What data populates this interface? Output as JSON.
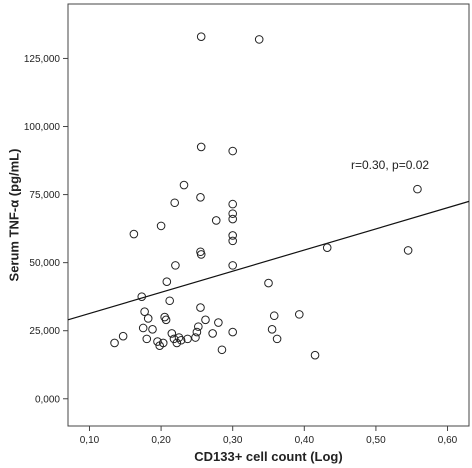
{
  "chart_data": {
    "type": "scatter",
    "xlabel": "CD133+ cell count (Log)",
    "ylabel": "Serum TNF-α (pg/mL)",
    "xlim": [
      0.07,
      0.63
    ],
    "ylim": [
      -10000,
      145000
    ],
    "x_ticks": [
      0.1,
      0.2,
      0.3,
      0.4,
      0.5,
      0.6
    ],
    "x_tick_labels": [
      "0,10",
      "0,20",
      "0,30",
      "0,40",
      "0,50",
      "0,60"
    ],
    "y_ticks": [
      0,
      25000,
      50000,
      75000,
      100000,
      125000
    ],
    "y_tick_labels": [
      "0,000",
      "25,000",
      "50,000",
      "75,000",
      "100,000",
      "125,000"
    ],
    "annotation": "r=0.30, p=0.02",
    "regression_line": {
      "x": [
        0.07,
        0.63
      ],
      "y": [
        29000,
        72500
      ]
    },
    "points": [
      {
        "x": 0.135,
        "y": 20500
      },
      {
        "x": 0.147,
        "y": 23000
      },
      {
        "x": 0.162,
        "y": 60500
      },
      {
        "x": 0.173,
        "y": 37500
      },
      {
        "x": 0.175,
        "y": 26000
      },
      {
        "x": 0.177,
        "y": 32000
      },
      {
        "x": 0.18,
        "y": 22000
      },
      {
        "x": 0.182,
        "y": 29500
      },
      {
        "x": 0.188,
        "y": 25500
      },
      {
        "x": 0.195,
        "y": 21000
      },
      {
        "x": 0.198,
        "y": 19500
      },
      {
        "x": 0.2,
        "y": 63500
      },
      {
        "x": 0.203,
        "y": 20500
      },
      {
        "x": 0.205,
        "y": 30000
      },
      {
        "x": 0.207,
        "y": 29000
      },
      {
        "x": 0.208,
        "y": 43000
      },
      {
        "x": 0.212,
        "y": 36000
      },
      {
        "x": 0.215,
        "y": 24000
      },
      {
        "x": 0.218,
        "y": 22000
      },
      {
        "x": 0.219,
        "y": 72000
      },
      {
        "x": 0.22,
        "y": 49000
      },
      {
        "x": 0.222,
        "y": 20500
      },
      {
        "x": 0.225,
        "y": 22500
      },
      {
        "x": 0.228,
        "y": 21500
      },
      {
        "x": 0.232,
        "y": 78500
      },
      {
        "x": 0.237,
        "y": 22000
      },
      {
        "x": 0.248,
        "y": 22500
      },
      {
        "x": 0.25,
        "y": 24500
      },
      {
        "x": 0.252,
        "y": 26500
      },
      {
        "x": 0.255,
        "y": 33500
      },
      {
        "x": 0.255,
        "y": 74000
      },
      {
        "x": 0.255,
        "y": 54000
      },
      {
        "x": 0.256,
        "y": 53000
      },
      {
        "x": 0.256,
        "y": 92500
      },
      {
        "x": 0.256,
        "y": 133000
      },
      {
        "x": 0.262,
        "y": 29000
      },
      {
        "x": 0.272,
        "y": 24000
      },
      {
        "x": 0.277,
        "y": 65500
      },
      {
        "x": 0.28,
        "y": 28000
      },
      {
        "x": 0.285,
        "y": 18000
      },
      {
        "x": 0.3,
        "y": 91000
      },
      {
        "x": 0.3,
        "y": 71500
      },
      {
        "x": 0.3,
        "y": 68000
      },
      {
        "x": 0.3,
        "y": 66000
      },
      {
        "x": 0.3,
        "y": 60000
      },
      {
        "x": 0.3,
        "y": 58000
      },
      {
        "x": 0.3,
        "y": 49000
      },
      {
        "x": 0.3,
        "y": 24500
      },
      {
        "x": 0.337,
        "y": 132000
      },
      {
        "x": 0.35,
        "y": 42500
      },
      {
        "x": 0.355,
        "y": 25500
      },
      {
        "x": 0.358,
        "y": 30500
      },
      {
        "x": 0.362,
        "y": 22000
      },
      {
        "x": 0.393,
        "y": 31000
      },
      {
        "x": 0.415,
        "y": 16000
      },
      {
        "x": 0.432,
        "y": 55500
      },
      {
        "x": 0.545,
        "y": 54500
      },
      {
        "x": 0.558,
        "y": 77000
      }
    ]
  }
}
